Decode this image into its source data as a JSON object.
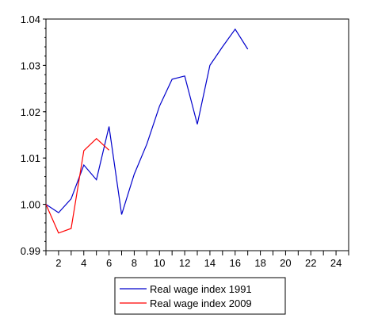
{
  "chart_data": {
    "type": "line",
    "title": "",
    "xlabel": "",
    "ylabel": "",
    "xlim": [
      1,
      25
    ],
    "ylim": [
      0.99,
      1.04
    ],
    "x_ticks": [
      2,
      4,
      6,
      8,
      10,
      12,
      14,
      16,
      18,
      20,
      22,
      24
    ],
    "y_ticks": [
      0.99,
      1.0,
      1.01,
      1.02,
      1.03,
      1.04
    ],
    "y_tick_labels": [
      "0.99",
      "1.00",
      "1.01",
      "1.02",
      "1.03",
      "1.04"
    ],
    "grid": false,
    "legend_position": "bottom-center",
    "series": [
      {
        "name": "Real wage index 1991",
        "color": "#0000cc",
        "x": [
          1,
          2,
          3,
          4,
          5,
          6,
          7,
          8,
          9,
          10,
          11,
          12,
          13,
          14,
          15,
          16,
          17
        ],
        "values": [
          1.0,
          0.9982,
          1.0012,
          1.0085,
          1.0053,
          1.0168,
          0.9978,
          1.0065,
          1.013,
          1.0212,
          1.027,
          1.0277,
          1.0173,
          1.03,
          1.034,
          1.0378,
          1.0335
        ]
      },
      {
        "name": "Real wage index 2009",
        "color": "#ff0000",
        "x": [
          1,
          2,
          3,
          4,
          5,
          6
        ],
        "values": [
          1.0,
          0.9938,
          0.9948,
          1.0116,
          1.0142,
          1.0117
        ]
      }
    ]
  }
}
